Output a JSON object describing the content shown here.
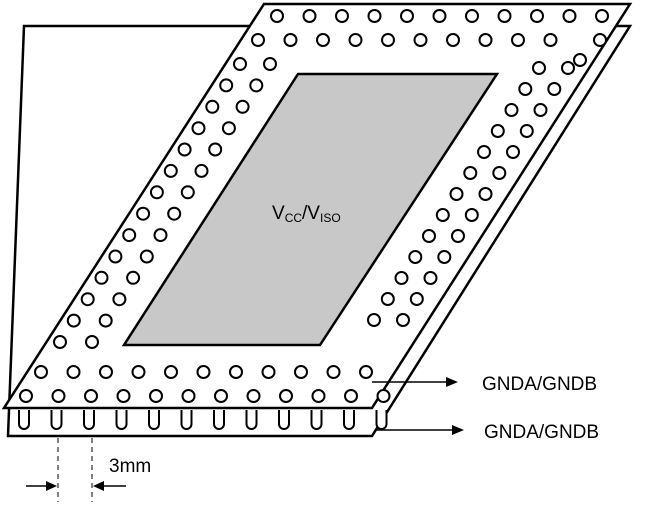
{
  "diagram": {
    "center_label": {
      "main": "V",
      "sub1": "CC",
      "slash": "/V",
      "sub2": "ISO"
    },
    "top_layer_label": "GNDA/GNDB",
    "bottom_layer_label": "GNDA/GNDB",
    "dimension_label": "3mm",
    "colors": {
      "board_fill": "#ffffff",
      "outline": "#000000",
      "center_plane": "#c8c8c8"
    }
  }
}
